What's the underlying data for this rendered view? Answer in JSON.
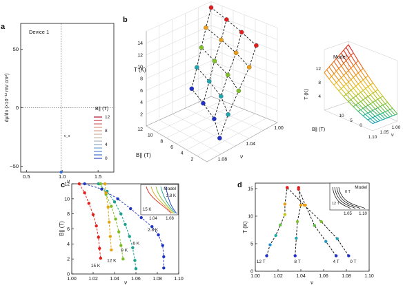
{
  "panels": {
    "a": {
      "letter": "a",
      "device_label": "Device 1"
    },
    "b": {
      "letter": "b",
      "model_label": "Model"
    },
    "c": {
      "letter": "c",
      "inset_label": "Model"
    },
    "d": {
      "letter": "d",
      "inset_label": "Model"
    }
  },
  "chart_data": [
    {
      "panel": "a",
      "type": "line",
      "xlabel": "ν",
      "ylabel": "dμ/dn (×10⁻¹² mV cm²)",
      "xlim": [
        0.42,
        1.72
      ],
      "ylim": [
        -55,
        72
      ],
      "xticks": [
        0.5,
        1.0,
        1.5
      ],
      "xtick_labels": [
        "0.5",
        "1.0",
        "1.5"
      ],
      "yticks": [
        -50,
        0,
        50
      ],
      "ytick_labels": [
        "−50",
        "0",
        "50"
      ],
      "marker_label": "ν_s",
      "marker_x": 0.985,
      "legend_title": "B∥ (T)",
      "legend_labels": [
        "12",
        "8",
        "4",
        "0"
      ],
      "series_fields_T": [
        0,
        1,
        2,
        3,
        4,
        5,
        6,
        7,
        8,
        9,
        10,
        11,
        12
      ]
    },
    {
      "panel": "b",
      "type": "scatter",
      "xlabel": "ν",
      "ylabel": "B∥ (T)",
      "zlabel": "T (K)",
      "x_ticks": [
        "1.08",
        "1.04",
        "1.00"
      ],
      "y_ticks": [
        "12",
        "10",
        "8",
        "6",
        "4",
        "2"
      ],
      "z_ticks": [
        "14",
        "12",
        "10",
        "8",
        "6",
        "4",
        "2"
      ],
      "points": [
        {
          "nu": 1.082,
          "B": 0,
          "T": 2.8
        },
        {
          "nu": 1.06,
          "B": 4,
          "T": 2.8
        },
        {
          "nu": 1.045,
          "B": 8,
          "T": 2.8
        },
        {
          "nu": 1.03,
          "B": 12,
          "T": 2.8
        },
        {
          "nu": 1.07,
          "B": 0,
          "T": 6
        },
        {
          "nu": 1.05,
          "B": 4,
          "T": 6
        },
        {
          "nu": 1.036,
          "B": 8,
          "T": 6
        },
        {
          "nu": 1.022,
          "B": 12,
          "T": 6
        },
        {
          "nu": 1.055,
          "B": 0,
          "T": 9
        },
        {
          "nu": 1.04,
          "B": 4,
          "T": 9
        },
        {
          "nu": 1.028,
          "B": 8,
          "T": 9
        },
        {
          "nu": 1.015,
          "B": 12,
          "T": 9
        },
        {
          "nu": 1.04,
          "B": 0,
          "T": 12
        },
        {
          "nu": 1.028,
          "B": 4,
          "T": 12
        },
        {
          "nu": 1.018,
          "B": 8,
          "T": 12
        },
        {
          "nu": 1.008,
          "B": 12,
          "T": 12
        },
        {
          "nu": 1.03,
          "B": 0,
          "T": 15
        },
        {
          "nu": 1.02,
          "B": 4,
          "T": 15
        },
        {
          "nu": 1.01,
          "B": 8,
          "T": 15
        },
        {
          "nu": 1.0,
          "B": 12,
          "T": 15
        }
      ]
    },
    {
      "panel": "b-inset",
      "type": "surface",
      "title": "Model",
      "zlabel": "T (K)",
      "ylabel": "B∥ (T)",
      "xlabel": "ν",
      "z_ticks": [
        "12",
        "8",
        "4"
      ],
      "y_ticks": [
        "10",
        "5",
        "0"
      ],
      "x_ticks": [
        "1.10",
        "1.05",
        "1.00"
      ]
    },
    {
      "panel": "c",
      "type": "scatter",
      "xlabel": "ν",
      "ylabel": "B∥ (T)",
      "xlim": [
        1.0,
        1.1
      ],
      "ylim": [
        0,
        12
      ],
      "xticks": [
        1.0,
        1.02,
        1.04,
        1.06,
        1.08,
        1.1
      ],
      "xtick_labels": [
        "1.00",
        "1.02",
        "1.04",
        "1.06",
        "1.08",
        "1.10"
      ],
      "yticks": [
        0,
        2,
        4,
        6,
        8,
        10,
        12
      ],
      "ytick_labels": [
        "0",
        "2",
        "4",
        "6",
        "8",
        "10",
        "12"
      ],
      "series": [
        {
          "name": "2.8 K",
          "color": "#1f36c4",
          "label_at": [
            1.071,
            5.7
          ],
          "points": [
            [
              1.012,
              12
            ],
            [
              1.028,
              11.3
            ],
            [
              1.043,
              10.0
            ],
            [
              1.055,
              8.7
            ],
            [
              1.065,
              7.5
            ],
            [
              1.075,
              6.3
            ],
            [
              1.081,
              5.2
            ],
            [
              1.085,
              3.8
            ],
            [
              1.086,
              2.3
            ],
            [
              1.086,
              0.8
            ]
          ]
        },
        {
          "name": "6 K",
          "color": "#1aa08c",
          "label_at": [
            1.057,
            3.9
          ],
          "points": [
            [
              1.025,
              12
            ],
            [
              1.033,
              11
            ],
            [
              1.04,
              9.6
            ],
            [
              1.046,
              8.0
            ],
            [
              1.05,
              6.6
            ],
            [
              1.054,
              5.0
            ],
            [
              1.057,
              3.5
            ],
            [
              1.059,
              1.8
            ],
            [
              1.06,
              0.7
            ]
          ]
        },
        {
          "name": "9 K",
          "color": "#7cbd24",
          "label_at": [
            1.046,
            3.0
          ],
          "points": [
            [
              1.027,
              12
            ],
            [
              1.032,
              10.6
            ],
            [
              1.037,
              9.0
            ],
            [
              1.041,
              7.3
            ],
            [
              1.044,
              5.6
            ],
            [
              1.046,
              3.8
            ],
            [
              1.048,
              2.0
            ]
          ]
        },
        {
          "name": "12 K",
          "color": "#e2a410",
          "label_at": [
            1.033,
            1.6
          ],
          "points": [
            [
              1.031,
              12
            ],
            [
              1.032,
              10.8
            ],
            [
              1.034,
              8.9
            ],
            [
              1.035,
              6.9
            ],
            [
              1.036,
              5.0
            ],
            [
              1.037,
              3.2
            ]
          ]
        },
        {
          "name": "15 K",
          "color": "#e0221c",
          "label_at": [
            1.018,
            0.9
          ],
          "points": [
            [
              1.007,
              12
            ],
            [
              1.012,
              10.8
            ],
            [
              1.016,
              9.4
            ],
            [
              1.02,
              7.9
            ],
            [
              1.023,
              6.4
            ],
            [
              1.025,
              4.9
            ],
            [
              1.026,
              3.4
            ],
            [
              1.027,
              2.1
            ]
          ]
        }
      ],
      "inset": {
        "title": "Model",
        "label_high": "2.8 K",
        "label_low": "15 K",
        "xtick_labels": [
          "1.04",
          "1.08"
        ]
      }
    },
    {
      "panel": "d",
      "type": "scatter",
      "xlabel": "ν",
      "ylabel": "T (K)",
      "xlim": [
        1.0,
        1.1
      ],
      "ylim": [
        0,
        16
      ],
      "xticks": [
        1.0,
        1.02,
        1.04,
        1.06,
        1.08,
        1.1
      ],
      "xtick_labels": [
        "1.00",
        "1.02",
        "1.04",
        "1.06",
        "1.08",
        "1.10"
      ],
      "yticks": [
        0,
        5,
        10,
        15
      ],
      "ytick_labels": [
        "0",
        "5",
        "10",
        "15"
      ],
      "series": [
        {
          "name": "12 T",
          "label_at": [
            1.005,
            1.5
          ],
          "points": [
            [
              1.01,
              2.8
            ],
            [
              1.013,
              4.8
            ],
            [
              1.018,
              6.5
            ],
            [
              1.022,
              8.4
            ],
            [
              1.026,
              10.3
            ],
            [
              1.026,
              12.2
            ],
            [
              1.028,
              15.2
            ]
          ]
        },
        {
          "name": "8 T",
          "label_at": [
            1.037,
            1.5
          ],
          "points": [
            [
              1.035,
              2.8
            ],
            [
              1.036,
              6.0
            ],
            [
              1.037,
              9.0
            ],
            [
              1.04,
              12.0
            ],
            [
              1.038,
              15.2
            ]
          ]
        },
        {
          "name": "4 T",
          "label_at": [
            1.071,
            1.5
          ],
          "points": [
            [
              1.071,
              2.8
            ],
            [
              1.062,
              5.4
            ],
            [
              1.052,
              8.3
            ],
            [
              1.044,
              12.0
            ],
            [
              1.038,
              14.9
            ]
          ]
        },
        {
          "name": "0 T",
          "label_at": [
            1.086,
            1.5
          ],
          "points": [
            [
              1.082,
              2.8
            ],
            [
              1.072,
              5.9
            ],
            [
              1.058,
              9.0
            ],
            [
              1.043,
              12.0
            ],
            [
              1.028,
              15.2
            ]
          ]
        }
      ],
      "inset": {
        "title": "Model",
        "label_top": "0 T",
        "label_bottom": "12 T",
        "xtick_labels": [
          "1.05",
          "1.10"
        ]
      }
    }
  ]
}
